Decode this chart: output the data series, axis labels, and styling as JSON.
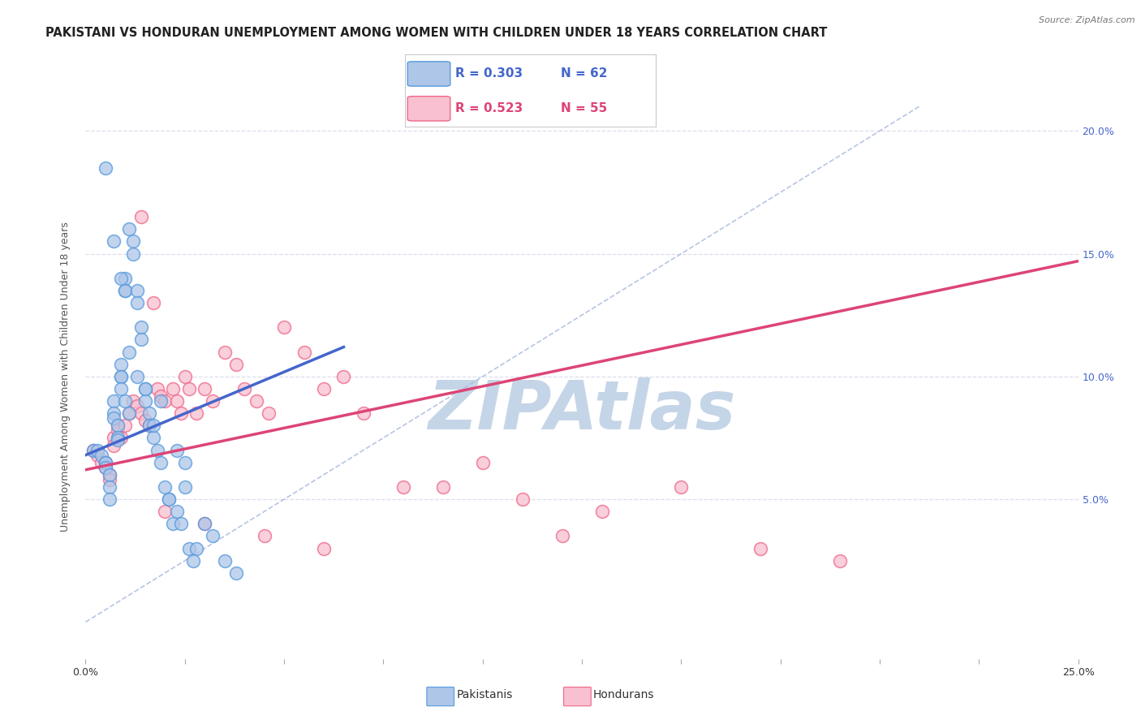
{
  "title": "PAKISTANI VS HONDURAN UNEMPLOYMENT AMONG WOMEN WITH CHILDREN UNDER 18 YEARS CORRELATION CHART",
  "source": "Source: ZipAtlas.com",
  "ylabel": "Unemployment Among Women with Children Under 18 years",
  "xlim": [
    0.0,
    0.25
  ],
  "ylim": [
    -0.015,
    0.215
  ],
  "legend_r1": "R = 0.303",
  "legend_n1": "N = 62",
  "legend_r2": "R = 0.523",
  "legend_n2": "N = 55",
  "color_pakistani_fill": "#aec6e8",
  "color_pakistani_edge": "#5599dd",
  "color_honduran_fill": "#f8c0d0",
  "color_honduran_edge": "#ee6688",
  "color_line_pakistani": "#4466cc",
  "color_line_honduran": "#dd4477",
  "color_diagonal": "#aabbdd",
  "watermark": "ZIPAtlas",
  "background_color": "#ffffff",
  "grid_color": "#ddddee",
  "title_fontsize": 10.5,
  "tick_fontsize": 9,
  "watermark_color": "#c5d5e8",
  "watermark_fontsize": 60,
  "pakistani_x": [
    0.002,
    0.003,
    0.004,
    0.005,
    0.005,
    0.005,
    0.006,
    0.006,
    0.006,
    0.007,
    0.007,
    0.007,
    0.008,
    0.008,
    0.008,
    0.009,
    0.009,
    0.009,
    0.009,
    0.01,
    0.01,
    0.01,
    0.01,
    0.011,
    0.011,
    0.012,
    0.012,
    0.013,
    0.013,
    0.014,
    0.014,
    0.015,
    0.015,
    0.016,
    0.016,
    0.017,
    0.018,
    0.019,
    0.02,
    0.021,
    0.022,
    0.023,
    0.024,
    0.025,
    0.026,
    0.028,
    0.03,
    0.032,
    0.035,
    0.038,
    0.005,
    0.007,
    0.009,
    0.011,
    0.013,
    0.015,
    0.017,
    0.019,
    0.021,
    0.023,
    0.025,
    0.027
  ],
  "pakistani_y": [
    0.07,
    0.07,
    0.068,
    0.065,
    0.065,
    0.063,
    0.06,
    0.055,
    0.05,
    0.09,
    0.085,
    0.083,
    0.08,
    0.075,
    0.074,
    0.105,
    0.1,
    0.1,
    0.095,
    0.14,
    0.135,
    0.135,
    0.09,
    0.085,
    0.16,
    0.155,
    0.15,
    0.135,
    0.13,
    0.12,
    0.115,
    0.095,
    0.09,
    0.085,
    0.08,
    0.075,
    0.07,
    0.065,
    0.055,
    0.05,
    0.04,
    0.045,
    0.04,
    0.055,
    0.03,
    0.03,
    0.04,
    0.035,
    0.025,
    0.02,
    0.185,
    0.155,
    0.14,
    0.11,
    0.1,
    0.095,
    0.08,
    0.09,
    0.05,
    0.07,
    0.065,
    0.025
  ],
  "honduran_x": [
    0.002,
    0.003,
    0.004,
    0.005,
    0.005,
    0.006,
    0.006,
    0.007,
    0.007,
    0.008,
    0.008,
    0.009,
    0.01,
    0.011,
    0.012,
    0.013,
    0.014,
    0.015,
    0.016,
    0.017,
    0.018,
    0.019,
    0.02,
    0.022,
    0.023,
    0.024,
    0.025,
    0.026,
    0.028,
    0.03,
    0.032,
    0.035,
    0.038,
    0.04,
    0.043,
    0.046,
    0.05,
    0.055,
    0.06,
    0.065,
    0.07,
    0.08,
    0.09,
    0.1,
    0.11,
    0.12,
    0.13,
    0.15,
    0.17,
    0.19,
    0.014,
    0.02,
    0.03,
    0.045,
    0.06
  ],
  "honduran_y": [
    0.07,
    0.068,
    0.065,
    0.065,
    0.063,
    0.06,
    0.058,
    0.075,
    0.072,
    0.08,
    0.078,
    0.075,
    0.08,
    0.085,
    0.09,
    0.088,
    0.085,
    0.082,
    0.08,
    0.13,
    0.095,
    0.092,
    0.09,
    0.095,
    0.09,
    0.085,
    0.1,
    0.095,
    0.085,
    0.095,
    0.09,
    0.11,
    0.105,
    0.095,
    0.09,
    0.085,
    0.12,
    0.11,
    0.095,
    0.1,
    0.085,
    0.055,
    0.055,
    0.065,
    0.05,
    0.035,
    0.045,
    0.055,
    0.03,
    0.025,
    0.165,
    0.045,
    0.04,
    0.035,
    0.03
  ],
  "trend_pak_x0": 0.0,
  "trend_pak_x1": 0.065,
  "trend_pak_y0": 0.068,
  "trend_pak_y1": 0.112,
  "trend_hon_x0": 0.0,
  "trend_hon_x1": 0.25,
  "trend_hon_y0": 0.062,
  "trend_hon_y1": 0.147
}
